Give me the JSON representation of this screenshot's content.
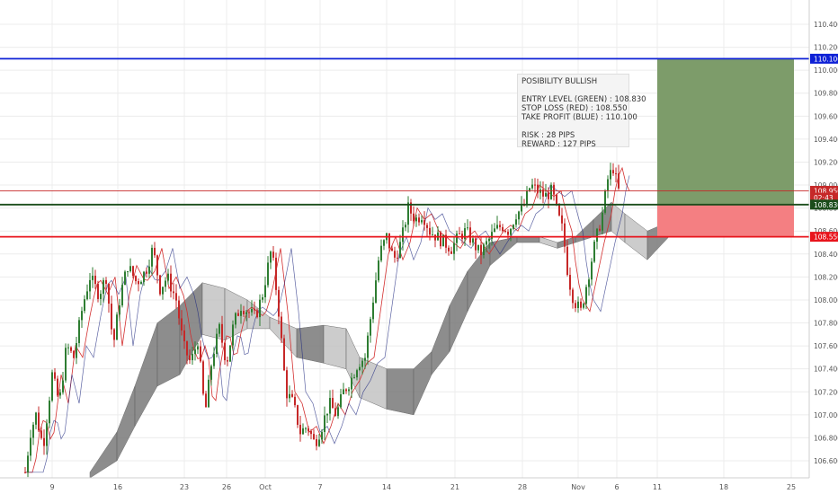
{
  "chart_data": {
    "type": "line",
    "title": "",
    "xlabel": "",
    "ylabel": "",
    "ylim": [
      106.48,
      110.55
    ],
    "x_ticks": [
      {
        "label": "9",
        "slot": 58
      },
      {
        "label": "16",
        "slot": 131
      },
      {
        "label": "23",
        "slot": 205
      },
      {
        "label": "26",
        "slot": 252
      },
      {
        "label": "Oct",
        "slot": 295
      },
      {
        "label": "7",
        "slot": 356
      },
      {
        "label": "14",
        "slot": 430
      },
      {
        "label": "21",
        "slot": 506
      },
      {
        "label": "28",
        "slot": 581
      },
      {
        "label": "Nov",
        "slot": 643
      },
      {
        "label": "6",
        "slot": 686
      },
      {
        "label": "11",
        "slot": 731
      },
      {
        "label": "18",
        "slot": 805
      },
      {
        "label": "25",
        "slot": 880
      }
    ],
    "y_ticks": [
      "110.400",
      "110.200",
      "110.000",
      "109.800",
      "109.600",
      "109.400",
      "109.200",
      "109.000",
      "108.800",
      "108.600",
      "108.400",
      "108.200",
      "108.000",
      "107.800",
      "107.600",
      "107.400",
      "107.200",
      "107.000",
      "106.800",
      "106.600"
    ],
    "levels": [
      {
        "name": "take_profit",
        "value": 110.1,
        "label": "110.100",
        "color": "#0d20d6"
      },
      {
        "name": "current",
        "value": 108.95,
        "label": "108.950",
        "color": "#c62828"
      },
      {
        "name": "countdown",
        "value": 108.89,
        "label": "02:43",
        "color": "#c62828"
      },
      {
        "name": "entry",
        "value": 108.83,
        "label": "108.830",
        "color": "#1b4d1b"
      },
      {
        "name": "stop_loss",
        "value": 108.55,
        "label": "108.550",
        "color": "#e8141c"
      }
    ],
    "position": {
      "entry": 108.83,
      "stop": 108.55,
      "target": 110.1,
      "profit_color": "#7d9c6a",
      "loss_color": "#f47f82"
    },
    "ohlc_anchors": [
      [
        28,
        106.5
      ],
      [
        34,
        106.85
      ],
      [
        40,
        107.0
      ],
      [
        48,
        106.72
      ],
      [
        58,
        107.35
      ],
      [
        66,
        107.1
      ],
      [
        74,
        107.6
      ],
      [
        82,
        107.5
      ],
      [
        92,
        107.95
      ],
      [
        100,
        108.2
      ],
      [
        110,
        108.05
      ],
      [
        118,
        108.2
      ],
      [
        126,
        107.6
      ],
      [
        134,
        108.05
      ],
      [
        142,
        108.3
      ],
      [
        152,
        108.15
      ],
      [
        162,
        108.25
      ],
      [
        170,
        108.45
      ],
      [
        178,
        108.1
      ],
      [
        186,
        108.2
      ],
      [
        196,
        108.0
      ],
      [
        204,
        107.6
      ],
      [
        212,
        107.45
      ],
      [
        220,
        107.65
      ],
      [
        228,
        107.0
      ],
      [
        236,
        107.5
      ],
      [
        244,
        107.75
      ],
      [
        252,
        107.45
      ],
      [
        260,
        107.8
      ],
      [
        268,
        107.95
      ],
      [
        276,
        107.9
      ],
      [
        284,
        107.85
      ],
      [
        292,
        108.05
      ],
      [
        302,
        108.45
      ],
      [
        310,
        107.9
      ],
      [
        318,
        107.2
      ],
      [
        326,
        107.1
      ],
      [
        334,
        106.85
      ],
      [
        342,
        106.9
      ],
      [
        350,
        106.75
      ],
      [
        358,
        106.9
      ],
      [
        366,
        107.1
      ],
      [
        374,
        107.0
      ],
      [
        382,
        107.2
      ],
      [
        390,
        107.3
      ],
      [
        398,
        107.45
      ],
      [
        406,
        107.5
      ],
      [
        414,
        107.95
      ],
      [
        422,
        108.4
      ],
      [
        430,
        108.55
      ],
      [
        438,
        108.35
      ],
      [
        446,
        108.5
      ],
      [
        454,
        108.8
      ],
      [
        462,
        108.7
      ],
      [
        470,
        108.75
      ],
      [
        478,
        108.6
      ],
      [
        486,
        108.55
      ],
      [
        494,
        108.5
      ],
      [
        502,
        108.45
      ],
      [
        510,
        108.55
      ],
      [
        518,
        108.6
      ],
      [
        526,
        108.5
      ],
      [
        534,
        108.4
      ],
      [
        542,
        108.5
      ],
      [
        550,
        108.6
      ],
      [
        558,
        108.65
      ],
      [
        566,
        108.6
      ],
      [
        574,
        108.75
      ],
      [
        582,
        108.8
      ],
      [
        590,
        109.0
      ],
      [
        598,
        108.95
      ],
      [
        606,
        108.9
      ],
      [
        614,
        108.95
      ],
      [
        620,
        108.75
      ],
      [
        626,
        108.6
      ],
      [
        632,
        108.2
      ],
      [
        638,
        108.0
      ],
      [
        646,
        107.9
      ],
      [
        654,
        108.2
      ],
      [
        662,
        108.5
      ],
      [
        670,
        108.75
      ],
      [
        676,
        109.05
      ],
      [
        682,
        109.15
      ],
      [
        688,
        108.95
      ]
    ],
    "cloud_upper": [
      [
        100,
        106.5
      ],
      [
        130,
        106.85
      ],
      [
        150,
        107.25
      ],
      [
        175,
        107.8
      ],
      [
        200,
        107.95
      ],
      [
        225,
        108.15
      ],
      [
        250,
        108.1
      ],
      [
        275,
        108.0
      ],
      [
        300,
        107.85
      ],
      [
        330,
        107.75
      ],
      [
        360,
        107.78
      ],
      [
        385,
        107.75
      ],
      [
        400,
        107.5
      ],
      [
        430,
        107.4
      ],
      [
        460,
        107.4
      ],
      [
        480,
        107.55
      ],
      [
        500,
        107.95
      ],
      [
        520,
        108.25
      ],
      [
        545,
        108.5
      ],
      [
        575,
        108.55
      ],
      [
        600,
        108.55
      ],
      [
        620,
        108.5
      ],
      [
        640,
        108.55
      ],
      [
        660,
        108.7
      ],
      [
        680,
        108.85
      ],
      [
        695,
        108.75
      ],
      [
        720,
        108.6
      ],
      [
        750,
        108.7
      ]
    ],
    "cloud_lower": [
      [
        100,
        106.45
      ],
      [
        130,
        106.6
      ],
      [
        150,
        106.9
      ],
      [
        175,
        107.25
      ],
      [
        200,
        107.35
      ],
      [
        225,
        107.7
      ],
      [
        250,
        107.65
      ],
      [
        275,
        107.75
      ],
      [
        300,
        107.75
      ],
      [
        330,
        107.5
      ],
      [
        360,
        107.45
      ],
      [
        385,
        107.4
      ],
      [
        400,
        107.15
      ],
      [
        430,
        107.05
      ],
      [
        460,
        107.0
      ],
      [
        480,
        107.35
      ],
      [
        500,
        107.55
      ],
      [
        520,
        107.9
      ],
      [
        545,
        108.3
      ],
      [
        575,
        108.5
      ],
      [
        600,
        108.5
      ],
      [
        620,
        108.45
      ],
      [
        640,
        108.5
      ],
      [
        660,
        108.55
      ],
      [
        680,
        108.6
      ],
      [
        695,
        108.5
      ],
      [
        720,
        108.35
      ],
      [
        750,
        108.6
      ]
    ]
  },
  "annotation": {
    "title": "POSIBILITY BULLISH",
    "entry": "ENTRY LEVEL (GREEN) : 108.830",
    "stop": "STOP LOSS (RED) : 108.550",
    "take": "TAKE PROFIT (BLUE) : 110.100",
    "risk": "RISK : 28 PIPS",
    "reward": "REWARD : 127 PIPS"
  },
  "colors": {
    "bull": "#2e7d32",
    "bear": "#c62828",
    "grid": "#ececec",
    "cloud_dark": "#7a7a7a",
    "cloud_light": "#c4c4c4",
    "axis_text": "#555555"
  }
}
